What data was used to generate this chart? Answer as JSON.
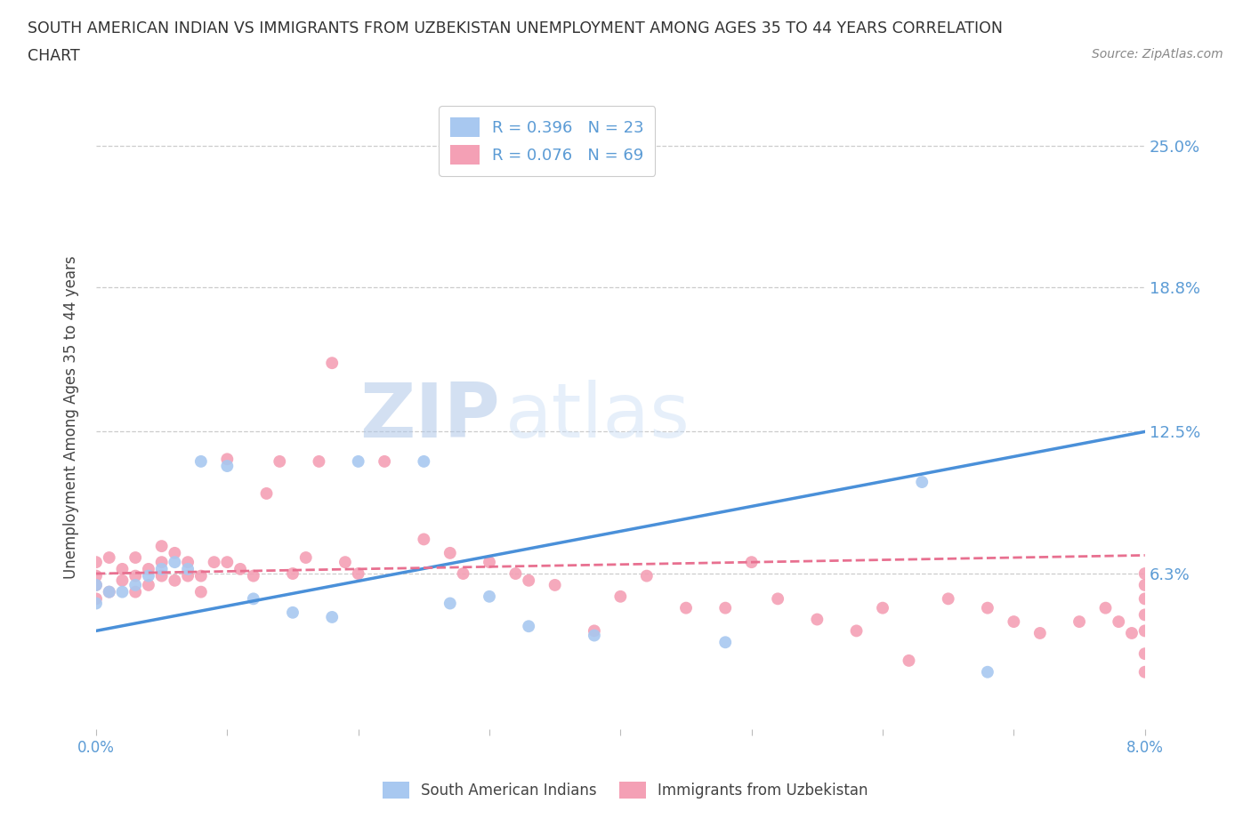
{
  "title_line1": "SOUTH AMERICAN INDIAN VS IMMIGRANTS FROM UZBEKISTAN UNEMPLOYMENT AMONG AGES 35 TO 44 YEARS CORRELATION",
  "title_line2": "CHART",
  "source": "Source: ZipAtlas.com",
  "xlabel": "",
  "ylabel": "Unemployment Among Ages 35 to 44 years",
  "xlim": [
    0.0,
    0.08
  ],
  "ylim": [
    -0.005,
    0.268
  ],
  "yticks": [
    0.063,
    0.125,
    0.188,
    0.25
  ],
  "ytick_labels": [
    "6.3%",
    "12.5%",
    "18.8%",
    "25.0%"
  ],
  "xticks": [
    0.0,
    0.01,
    0.02,
    0.03,
    0.04,
    0.05,
    0.06,
    0.07,
    0.08
  ],
  "xtick_labels": [
    "0.0%",
    "",
    "",
    "",
    "",
    "",
    "",
    "",
    "8.0%"
  ],
  "blue_R": 0.396,
  "blue_N": 23,
  "pink_R": 0.076,
  "pink_N": 69,
  "blue_color": "#a8c8f0",
  "pink_color": "#f4a0b5",
  "blue_line_color": "#4a90d9",
  "pink_line_color": "#e87090",
  "watermark_zip": "ZIP",
  "watermark_atlas": "atlas",
  "blue_scatter_x": [
    0.0,
    0.0,
    0.001,
    0.002,
    0.003,
    0.004,
    0.005,
    0.006,
    0.007,
    0.008,
    0.01,
    0.012,
    0.015,
    0.018,
    0.02,
    0.025,
    0.027,
    0.03,
    0.033,
    0.038,
    0.048,
    0.063,
    0.068
  ],
  "blue_scatter_y": [
    0.05,
    0.058,
    0.055,
    0.055,
    0.058,
    0.062,
    0.065,
    0.068,
    0.065,
    0.112,
    0.11,
    0.052,
    0.046,
    0.044,
    0.112,
    0.112,
    0.05,
    0.053,
    0.04,
    0.036,
    0.033,
    0.103,
    0.02
  ],
  "pink_scatter_x": [
    0.0,
    0.0,
    0.0,
    0.0,
    0.001,
    0.001,
    0.002,
    0.002,
    0.003,
    0.003,
    0.003,
    0.004,
    0.004,
    0.005,
    0.005,
    0.005,
    0.006,
    0.006,
    0.007,
    0.007,
    0.008,
    0.008,
    0.009,
    0.01,
    0.01,
    0.011,
    0.012,
    0.013,
    0.014,
    0.015,
    0.016,
    0.017,
    0.018,
    0.019,
    0.02,
    0.022,
    0.025,
    0.027,
    0.028,
    0.03,
    0.032,
    0.033,
    0.035,
    0.038,
    0.04,
    0.042,
    0.045,
    0.048,
    0.05,
    0.052,
    0.055,
    0.058,
    0.06,
    0.062,
    0.065,
    0.068,
    0.07,
    0.072,
    0.075,
    0.077,
    0.078,
    0.079,
    0.08,
    0.08,
    0.08,
    0.08,
    0.08,
    0.08,
    0.08
  ],
  "pink_scatter_y": [
    0.052,
    0.058,
    0.062,
    0.068,
    0.055,
    0.07,
    0.06,
    0.065,
    0.055,
    0.062,
    0.07,
    0.058,
    0.065,
    0.062,
    0.068,
    0.075,
    0.06,
    0.072,
    0.062,
    0.068,
    0.055,
    0.062,
    0.068,
    0.068,
    0.113,
    0.065,
    0.062,
    0.098,
    0.112,
    0.063,
    0.07,
    0.112,
    0.155,
    0.068,
    0.063,
    0.112,
    0.078,
    0.072,
    0.063,
    0.068,
    0.063,
    0.06,
    0.058,
    0.038,
    0.053,
    0.062,
    0.048,
    0.048,
    0.068,
    0.052,
    0.043,
    0.038,
    0.048,
    0.025,
    0.052,
    0.048,
    0.042,
    0.037,
    0.042,
    0.048,
    0.042,
    0.037,
    0.02,
    0.038,
    0.045,
    0.052,
    0.058,
    0.063,
    0.028
  ],
  "blue_line_x0": 0.0,
  "blue_line_y0": 0.038,
  "blue_line_x1": 0.08,
  "blue_line_y1": 0.125,
  "pink_line_x0": 0.0,
  "pink_line_y0": 0.063,
  "pink_line_x1": 0.08,
  "pink_line_y1": 0.071
}
